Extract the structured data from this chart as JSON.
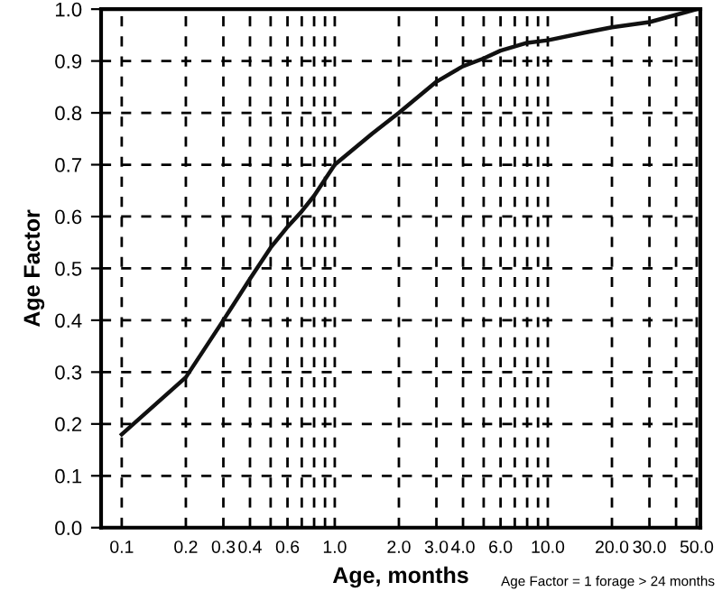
{
  "chart_data": {
    "type": "line",
    "xlabel": "Age, months",
    "ylabel": "Age Factor",
    "log": "x",
    "annotations": [
      "Age Factor = 1 forage > 24 months"
    ],
    "x": [
      0.1,
      0.2,
      0.3,
      0.4,
      0.5,
      0.6,
      0.7,
      0.8,
      1.0,
      1.5,
      2.0,
      3.0,
      4.0,
      5.0,
      6.0,
      8.0,
      10.0,
      15.0,
      20.0,
      30.0,
      50.0
    ],
    "series": [
      {
        "color": "#111111",
        "values": [
          0.18,
          0.29,
          0.4,
          0.48,
          0.54,
          0.58,
          0.61,
          0.64,
          0.7,
          0.76,
          0.8,
          0.86,
          0.89,
          0.905,
          0.92,
          0.935,
          0.94,
          0.955,
          0.965,
          0.975,
          1.0
        ]
      }
    ],
    "xlim": [
      0.08,
      52
    ],
    "ylim": [
      0,
      1
    ],
    "xticks": [
      {
        "value": 0.1,
        "label": "0.1"
      },
      {
        "value": 0.2,
        "label": "0.2"
      },
      {
        "value": 0.3,
        "label": "0.3"
      },
      {
        "value": 0.4,
        "label": "0.4"
      },
      {
        "value": 0.5,
        "label": null
      },
      {
        "value": 0.6,
        "label": "0.6"
      },
      {
        "value": 0.7,
        "label": null
      },
      {
        "value": 0.8,
        "label": null
      },
      {
        "value": 0.9,
        "label": null
      },
      {
        "value": 1,
        "label": "1.0"
      },
      {
        "value": 2,
        "label": "2.0"
      },
      {
        "value": 3,
        "label": "3.0"
      },
      {
        "value": 4,
        "label": "4.0"
      },
      {
        "value": 5,
        "label": null
      },
      {
        "value": 6,
        "label": "6.0"
      },
      {
        "value": 7,
        "label": null
      },
      {
        "value": 8,
        "label": null
      },
      {
        "value": 9,
        "label": null
      },
      {
        "value": 10,
        "label": "10.0"
      },
      {
        "value": 20,
        "label": "20.0"
      },
      {
        "value": 30,
        "label": "30.0"
      },
      {
        "value": 40,
        "label": null
      },
      {
        "value": 50,
        "label": "50.0"
      }
    ],
    "yticks": [
      {
        "value": 0,
        "label": "0.0"
      },
      {
        "value": 0.1,
        "label": "0.1"
      },
      {
        "value": 0.2,
        "label": "0.2"
      },
      {
        "value": 0.3,
        "label": "0.3"
      },
      {
        "value": 0.4,
        "label": "0.4"
      },
      {
        "value": 0.5,
        "label": "0.5"
      },
      {
        "value": 0.6,
        "label": "0.6"
      },
      {
        "value": 0.7,
        "label": "0.7"
      },
      {
        "value": 0.8,
        "label": "0.8"
      },
      {
        "value": 0.9,
        "label": "0.9"
      },
      {
        "value": 1,
        "label": "1.0"
      }
    ],
    "grid": true,
    "line_style": "solid",
    "marker": "none",
    "legend": false
  }
}
